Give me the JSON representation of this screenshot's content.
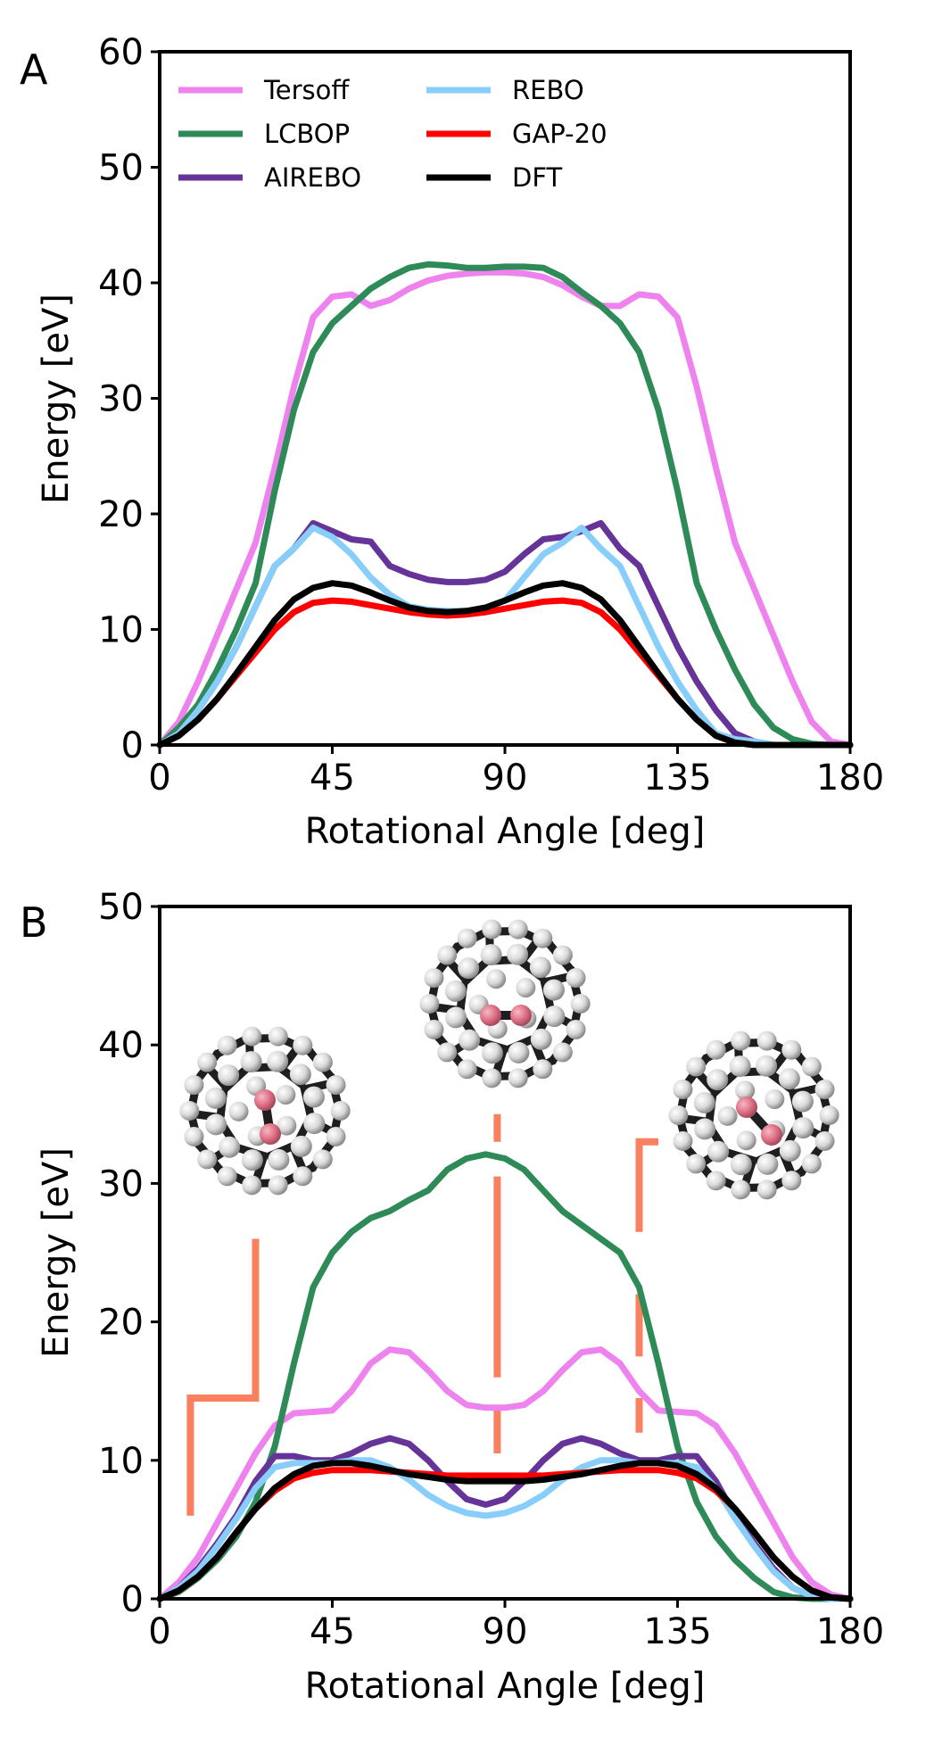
{
  "chart_data": [
    {
      "type": "line",
      "panel_label": "A",
      "xlabel": "Rotational Angle [deg]",
      "ylabel": "Energy [eV]",
      "xlim": [
        0,
        180
      ],
      "ylim": [
        0,
        60
      ],
      "xticks": [
        0,
        45,
        90,
        135,
        180
      ],
      "yticks": [
        0,
        10,
        20,
        30,
        40,
        50,
        60
      ],
      "grid": false,
      "legend": "top-left, two columns",
      "x": [
        0,
        5,
        10,
        15,
        20,
        25,
        30,
        35,
        40,
        45,
        50,
        55,
        60,
        65,
        70,
        75,
        80,
        85,
        90,
        95,
        100,
        105,
        110,
        115,
        120,
        125,
        130,
        135,
        140,
        145,
        150,
        155,
        160,
        165,
        170,
        175,
        180
      ],
      "series": [
        {
          "name": "Tersoff",
          "color": "#ee82ee",
          "values": [
            0,
            2,
            5.5,
            9.5,
            13.5,
            17.5,
            24,
            31,
            37,
            38.8,
            39,
            38,
            38.5,
            39.5,
            40.2,
            40.6,
            40.8,
            40.9,
            40.9,
            40.8,
            40.5,
            39.8,
            38.8,
            38,
            38,
            39,
            38.8,
            37,
            31,
            24,
            17.5,
            13.5,
            9.5,
            5.5,
            2,
            0.3,
            0
          ]
        },
        {
          "name": "LCBOP",
          "color": "#2e8b57",
          "values": [
            0,
            1.5,
            3.5,
            6.5,
            10,
            14,
            22,
            29,
            34,
            36.5,
            38,
            39.5,
            40.5,
            41.3,
            41.6,
            41.5,
            41.3,
            41.3,
            41.4,
            41.4,
            41.3,
            40.5,
            39.2,
            38,
            36.5,
            34,
            29,
            22,
            14,
            10,
            6.5,
            3.5,
            1.5,
            0.5,
            0.1,
            0,
            0
          ]
        },
        {
          "name": "AIREBO",
          "color": "#663399",
          "values": [
            0,
            1,
            3,
            5.5,
            8.5,
            12,
            15.5,
            17,
            19.2,
            18.5,
            17.8,
            17.6,
            15.5,
            14.8,
            14.3,
            14.1,
            14.1,
            14.3,
            15,
            16.5,
            17.8,
            18,
            18.5,
            19.2,
            17,
            15.5,
            12,
            8.5,
            5.5,
            3,
            1,
            0.3,
            0,
            0,
            0,
            0,
            0
          ]
        },
        {
          "name": "REBO",
          "color": "#87cefa",
          "values": [
            0,
            1,
            3,
            5.5,
            8.5,
            12,
            15.5,
            17,
            18.8,
            18,
            16.5,
            14.5,
            13,
            12,
            11.7,
            11.6,
            11.6,
            11.8,
            12.5,
            14.5,
            16.5,
            17.5,
            18.8,
            17,
            15.5,
            12,
            8.5,
            5.5,
            3,
            1,
            0.5,
            0.3,
            0,
            0,
            0,
            0,
            0
          ]
        },
        {
          "name": "GAP-20",
          "color": "#ff0000",
          "values": [
            0,
            0.8,
            2.2,
            4,
            6,
            8,
            10,
            11.5,
            12.3,
            12.5,
            12.4,
            12.1,
            11.8,
            11.5,
            11.3,
            11.2,
            11.3,
            11.5,
            11.8,
            12.1,
            12.4,
            12.5,
            12.3,
            11.5,
            10,
            8,
            6,
            4,
            2.2,
            0.8,
            0.2,
            0,
            0,
            0,
            0,
            0,
            0
          ]
        },
        {
          "name": "DFT",
          "color": "#000000",
          "values": [
            0,
            0.8,
            2.2,
            4,
            6.2,
            8.5,
            10.8,
            12.6,
            13.6,
            14,
            13.8,
            13.2,
            12.5,
            11.9,
            11.6,
            11.5,
            11.6,
            11.9,
            12.5,
            13.2,
            13.8,
            14,
            13.6,
            12.6,
            10.8,
            8.5,
            6.2,
            4,
            2.2,
            0.8,
            0.2,
            0,
            0,
            0,
            0,
            0,
            0
          ]
        }
      ]
    },
    {
      "type": "line",
      "panel_label": "B",
      "xlabel": "Rotational Angle [deg]",
      "ylabel": "Energy [eV]",
      "xlim": [
        0,
        180
      ],
      "ylim": [
        0,
        50
      ],
      "xticks": [
        0,
        45,
        90,
        135,
        180
      ],
      "yticks": [
        0,
        10,
        20,
        30,
        40,
        50
      ],
      "grid": false,
      "insets": [
        "fullerene molecule, start configuration",
        "fullerene molecule, middle configuration",
        "fullerene molecule, end configuration"
      ],
      "x": [
        0,
        5,
        10,
        15,
        20,
        25,
        30,
        35,
        40,
        45,
        50,
        55,
        60,
        65,
        70,
        75,
        80,
        85,
        90,
        95,
        100,
        105,
        110,
        115,
        120,
        125,
        130,
        135,
        140,
        145,
        150,
        155,
        160,
        165,
        170,
        175,
        180
      ],
      "series": [
        {
          "name": "Tersoff",
          "color": "#ee82ee",
          "values": [
            0,
            1.2,
            3,
            5.5,
            8,
            10.5,
            12.5,
            13.4,
            13.5,
            13.6,
            15,
            17,
            18,
            17.8,
            16.5,
            15,
            14,
            13.8,
            13.8,
            14,
            15,
            16.5,
            17.8,
            18,
            17,
            15,
            13.6,
            13.5,
            13.4,
            12.5,
            10.5,
            8,
            5.5,
            3,
            1.2,
            0.3,
            0
          ]
        },
        {
          "name": "LCBOP",
          "color": "#2e8b57",
          "values": [
            0,
            0.5,
            1.5,
            2.8,
            4.5,
            7,
            11,
            17,
            22.5,
            25,
            26.5,
            27.5,
            28,
            28.8,
            29.5,
            31,
            31.8,
            32.1,
            31.8,
            31,
            29.5,
            28,
            27,
            26,
            25,
            22.5,
            17,
            11,
            7,
            4.5,
            2.8,
            1.5,
            0.5,
            0.1,
            0,
            0,
            0
          ]
        },
        {
          "name": "AIREBO",
          "color": "#663399",
          "values": [
            0,
            0.8,
            2.2,
            4,
            6,
            8.5,
            10.3,
            10.3,
            10,
            10,
            10.5,
            11.2,
            11.6,
            11.2,
            10,
            8.5,
            7.2,
            6.8,
            7.2,
            8.5,
            10,
            11.2,
            11.6,
            11.2,
            10.5,
            10,
            10,
            10.3,
            10.3,
            8.5,
            6,
            4,
            2.2,
            0.8,
            0.2,
            0,
            0
          ]
        },
        {
          "name": "REBO",
          "color": "#87cefa",
          "values": [
            0,
            0.8,
            2,
            3.8,
            5.8,
            8,
            9.5,
            9.8,
            9.8,
            9.8,
            10,
            10,
            9.5,
            8.6,
            7.5,
            6.7,
            6.2,
            6,
            6.2,
            6.7,
            7.5,
            8.6,
            9.5,
            10,
            10,
            9.8,
            9.8,
            9.8,
            9.5,
            8,
            5.8,
            3.8,
            2,
            0.8,
            0.2,
            0,
            0
          ]
        },
        {
          "name": "GAP-20",
          "color": "#ff0000",
          "values": [
            0,
            0.6,
            1.6,
            3,
            4.8,
            6.5,
            7.8,
            8.7,
            9.1,
            9.3,
            9.3,
            9.3,
            9.2,
            9.1,
            9,
            8.9,
            8.9,
            8.9,
            8.9,
            8.9,
            8.9,
            9,
            9.1,
            9.2,
            9.3,
            9.3,
            9.3,
            9.1,
            8.7,
            7.8,
            6.5,
            4.8,
            3,
            1.6,
            0.6,
            0.1,
            0
          ]
        },
        {
          "name": "DFT",
          "color": "#000000",
          "values": [
            0,
            0.6,
            1.6,
            3,
            4.8,
            6.5,
            8,
            9,
            9.6,
            9.8,
            9.8,
            9.6,
            9.3,
            9,
            8.8,
            8.6,
            8.5,
            8.5,
            8.5,
            8.5,
            8.6,
            8.8,
            9,
            9.3,
            9.6,
            9.8,
            9.8,
            9.6,
            9,
            8,
            6.5,
            4.8,
            3,
            1.6,
            0.6,
            0.1,
            0
          ]
        }
      ],
      "markers": [
        {
          "label": "start-marker",
          "color": "#fa8060",
          "x": [
            8,
            8,
            25,
            25
          ],
          "y": [
            6,
            14.5,
            14.5,
            26
          ]
        },
        {
          "label": "middle-marker-upper",
          "color": "#fa8060",
          "x": [
            88,
            88
          ],
          "y": [
            33,
            35
          ]
        },
        {
          "label": "middle-marker-long",
          "color": "#fa8060",
          "x": [
            88,
            88
          ],
          "y": [
            16,
            30.5
          ]
        },
        {
          "label": "middle-marker-lower",
          "color": "#fa8060",
          "x": [
            88,
            88
          ],
          "y": [
            10.5,
            14
          ]
        },
        {
          "label": "end-marker-top",
          "color": "#fa8060",
          "x": [
            125,
            125,
            130
          ],
          "y": [
            26.5,
            33,
            33
          ]
        },
        {
          "label": "end-marker-mid",
          "color": "#fa8060",
          "x": [
            125,
            125
          ],
          "y": [
            17.5,
            22
          ]
        },
        {
          "label": "end-marker-low",
          "color": "#fa8060",
          "x": [
            125,
            125
          ],
          "y": [
            12,
            14.5
          ]
        }
      ]
    }
  ]
}
